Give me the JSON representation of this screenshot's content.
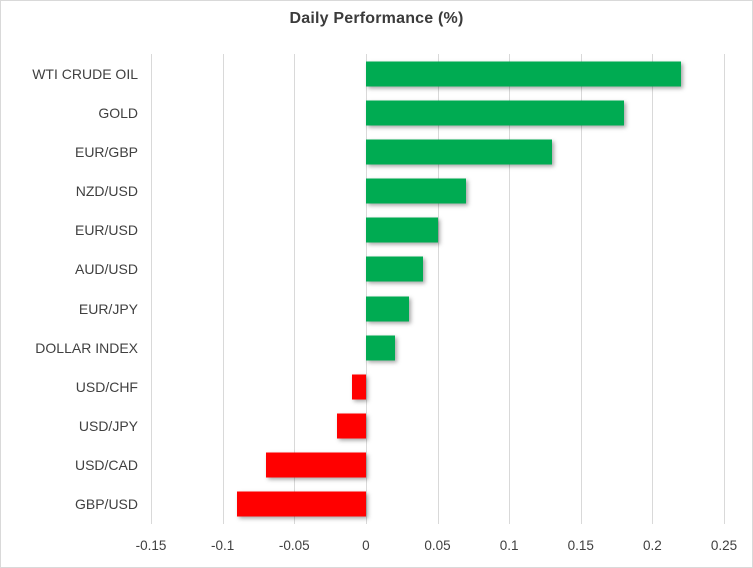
{
  "chart_data": {
    "type": "bar",
    "orientation": "horizontal",
    "title": "Daily Performance (%)",
    "categories": [
      "WTI CRUDE OIL",
      "GOLD",
      "EUR/GBP",
      "NZD/USD",
      "EUR/USD",
      "AUD/USD",
      "EUR/JPY",
      "DOLLAR INDEX",
      "USD/CHF",
      "USD/JPY",
      "USD/CAD",
      "GBP/USD"
    ],
    "values": [
      0.22,
      0.18,
      0.13,
      0.07,
      0.05,
      0.04,
      0.03,
      0.02,
      -0.01,
      -0.02,
      -0.07,
      -0.09
    ],
    "xlim": [
      -0.15,
      0.25
    ],
    "x_ticks": [
      -0.15,
      -0.1,
      -0.05,
      0,
      0.05,
      0.1,
      0.15,
      0.2,
      0.25
    ],
    "x_tick_labels": [
      "-0.15",
      "-0.1",
      "-0.05",
      "0",
      "0.05",
      "0.1",
      "0.15",
      "0.2",
      "0.25"
    ],
    "grid": true,
    "legend": "none",
    "colors": {
      "positive": "#00AB52",
      "negative": "#FF0000",
      "gridline": "#D9D9D9",
      "axis_text": "#404040",
      "title_text": "#3B3B3B",
      "border": "#D9D9D9",
      "background": "#FFFFFF"
    }
  }
}
